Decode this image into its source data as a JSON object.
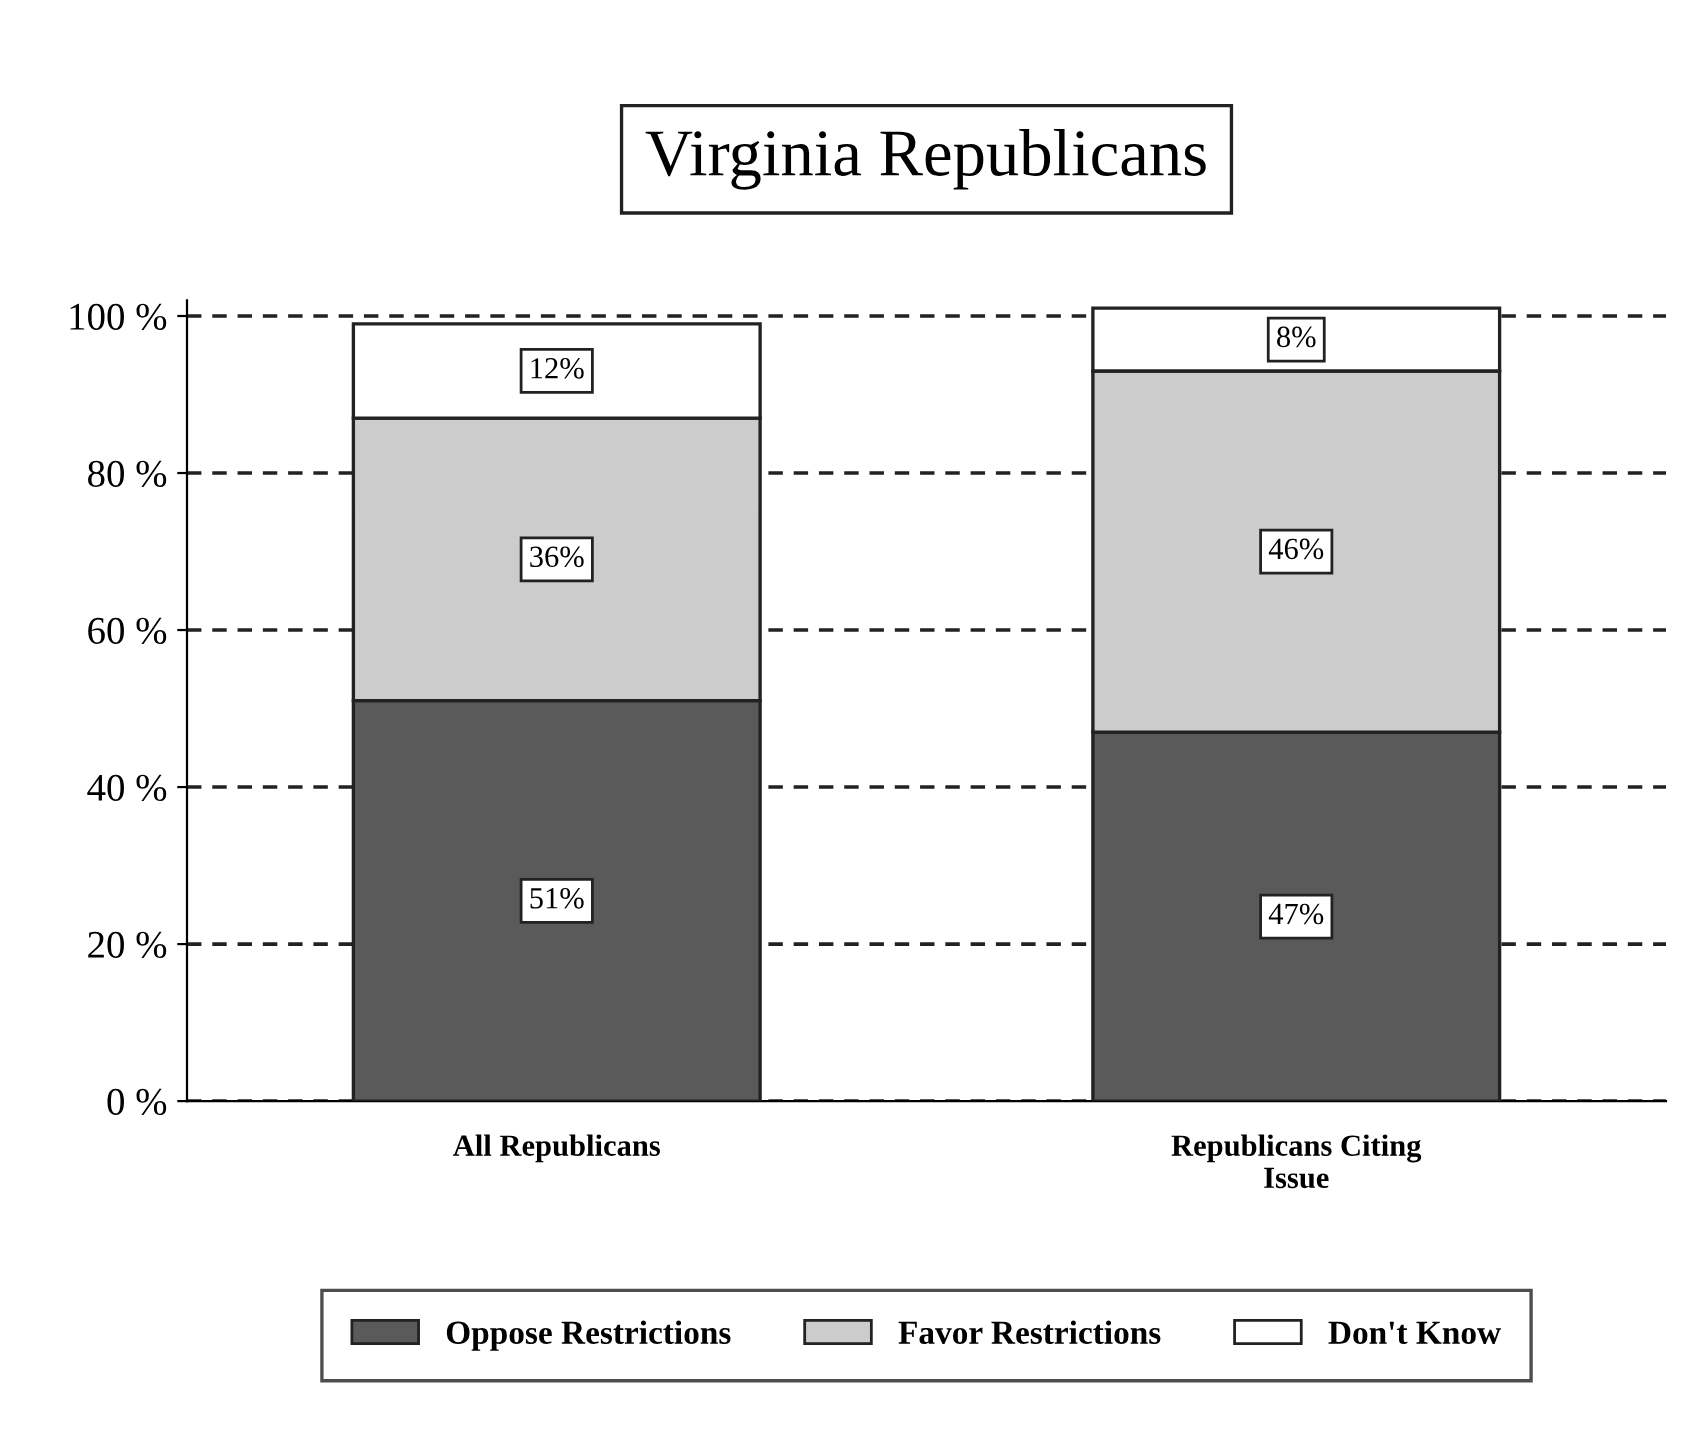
{
  "chart_data": {
    "type": "bar",
    "title": "Virginia Republicans",
    "categories": [
      "All Republicans",
      "Republicans Citing\nIssue"
    ],
    "stacked": true,
    "series": [
      {
        "name": "Oppose Restrictions",
        "color": "#5a5a5a",
        "values": [
          51,
          47
        ],
        "value_labels": [
          "51%",
          "47%"
        ]
      },
      {
        "name": "Favor Restrictions",
        "color": "#cccccc",
        "values": [
          36,
          46
        ],
        "value_labels": [
          "36%",
          "46%"
        ]
      },
      {
        "name": "Don't Know",
        "color": "#ffffff",
        "values": [
          12,
          8
        ],
        "value_labels": [
          "12%",
          "8%"
        ]
      }
    ],
    "ylim": [
      0,
      102
    ],
    "yticks": [
      {
        "value": 0,
        "label": "0 %"
      },
      {
        "value": 20,
        "label": "20 %"
      },
      {
        "value": 40,
        "label": "40 %"
      },
      {
        "value": 60,
        "label": "60 %"
      },
      {
        "value": 80,
        "label": "80 %"
      },
      {
        "value": 100,
        "label": "100 %"
      }
    ],
    "grid": "y",
    "legend": "bottom"
  }
}
